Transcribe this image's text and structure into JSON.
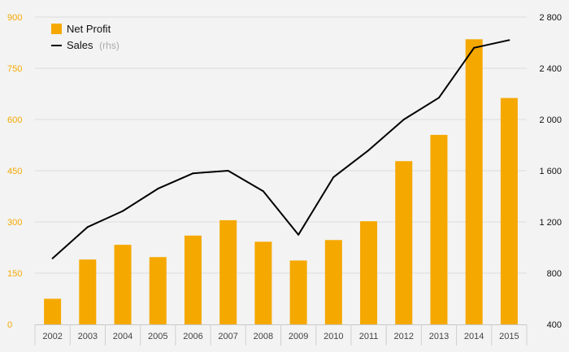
{
  "chart_data": {
    "type": "bar",
    "categories": [
      "2002",
      "2003",
      "2004",
      "2005",
      "2006",
      "2007",
      "2008",
      "2009",
      "2010",
      "2011",
      "2012",
      "2013",
      "2014",
      "2015"
    ],
    "series": [
      {
        "name": "Net Profit",
        "type": "bar",
        "axis": "left",
        "color": "#f5a800",
        "values": [
          75,
          190,
          233,
          197,
          260,
          305,
          242,
          187,
          247,
          302,
          478,
          555,
          835,
          663
        ]
      },
      {
        "name": "Sales",
        "name_suffix": "(rhs)",
        "type": "line",
        "axis": "right",
        "color": "#000000",
        "values": [
          915,
          1160,
          1285,
          1460,
          1580,
          1600,
          1440,
          1100,
          1550,
          1760,
          2000,
          2170,
          2560,
          2620
        ]
      }
    ],
    "y_left": {
      "ylim": [
        0,
        900
      ],
      "ticks": [
        0,
        150,
        300,
        450,
        600,
        750,
        900
      ],
      "tick_labels": [
        "0",
        "150",
        "300",
        "450",
        "600",
        "750",
        "900"
      ],
      "color": "#f5a800"
    },
    "y_right": {
      "ylim": [
        400,
        2800
      ],
      "ticks": [
        400,
        800,
        1200,
        1600,
        2000,
        2400,
        2800
      ],
      "tick_labels": [
        "400",
        "800",
        "1 200",
        "1 600",
        "2 000",
        "2 400",
        "2 800"
      ],
      "color": "#111111"
    },
    "title": "",
    "xlabel": "",
    "ylabel": "",
    "grid": true,
    "legend": {
      "placement": "top-left",
      "entries": [
        {
          "label": "Net Profit",
          "suffix": ""
        },
        {
          "label": "Sales",
          "suffix": "(rhs)"
        }
      ]
    }
  }
}
